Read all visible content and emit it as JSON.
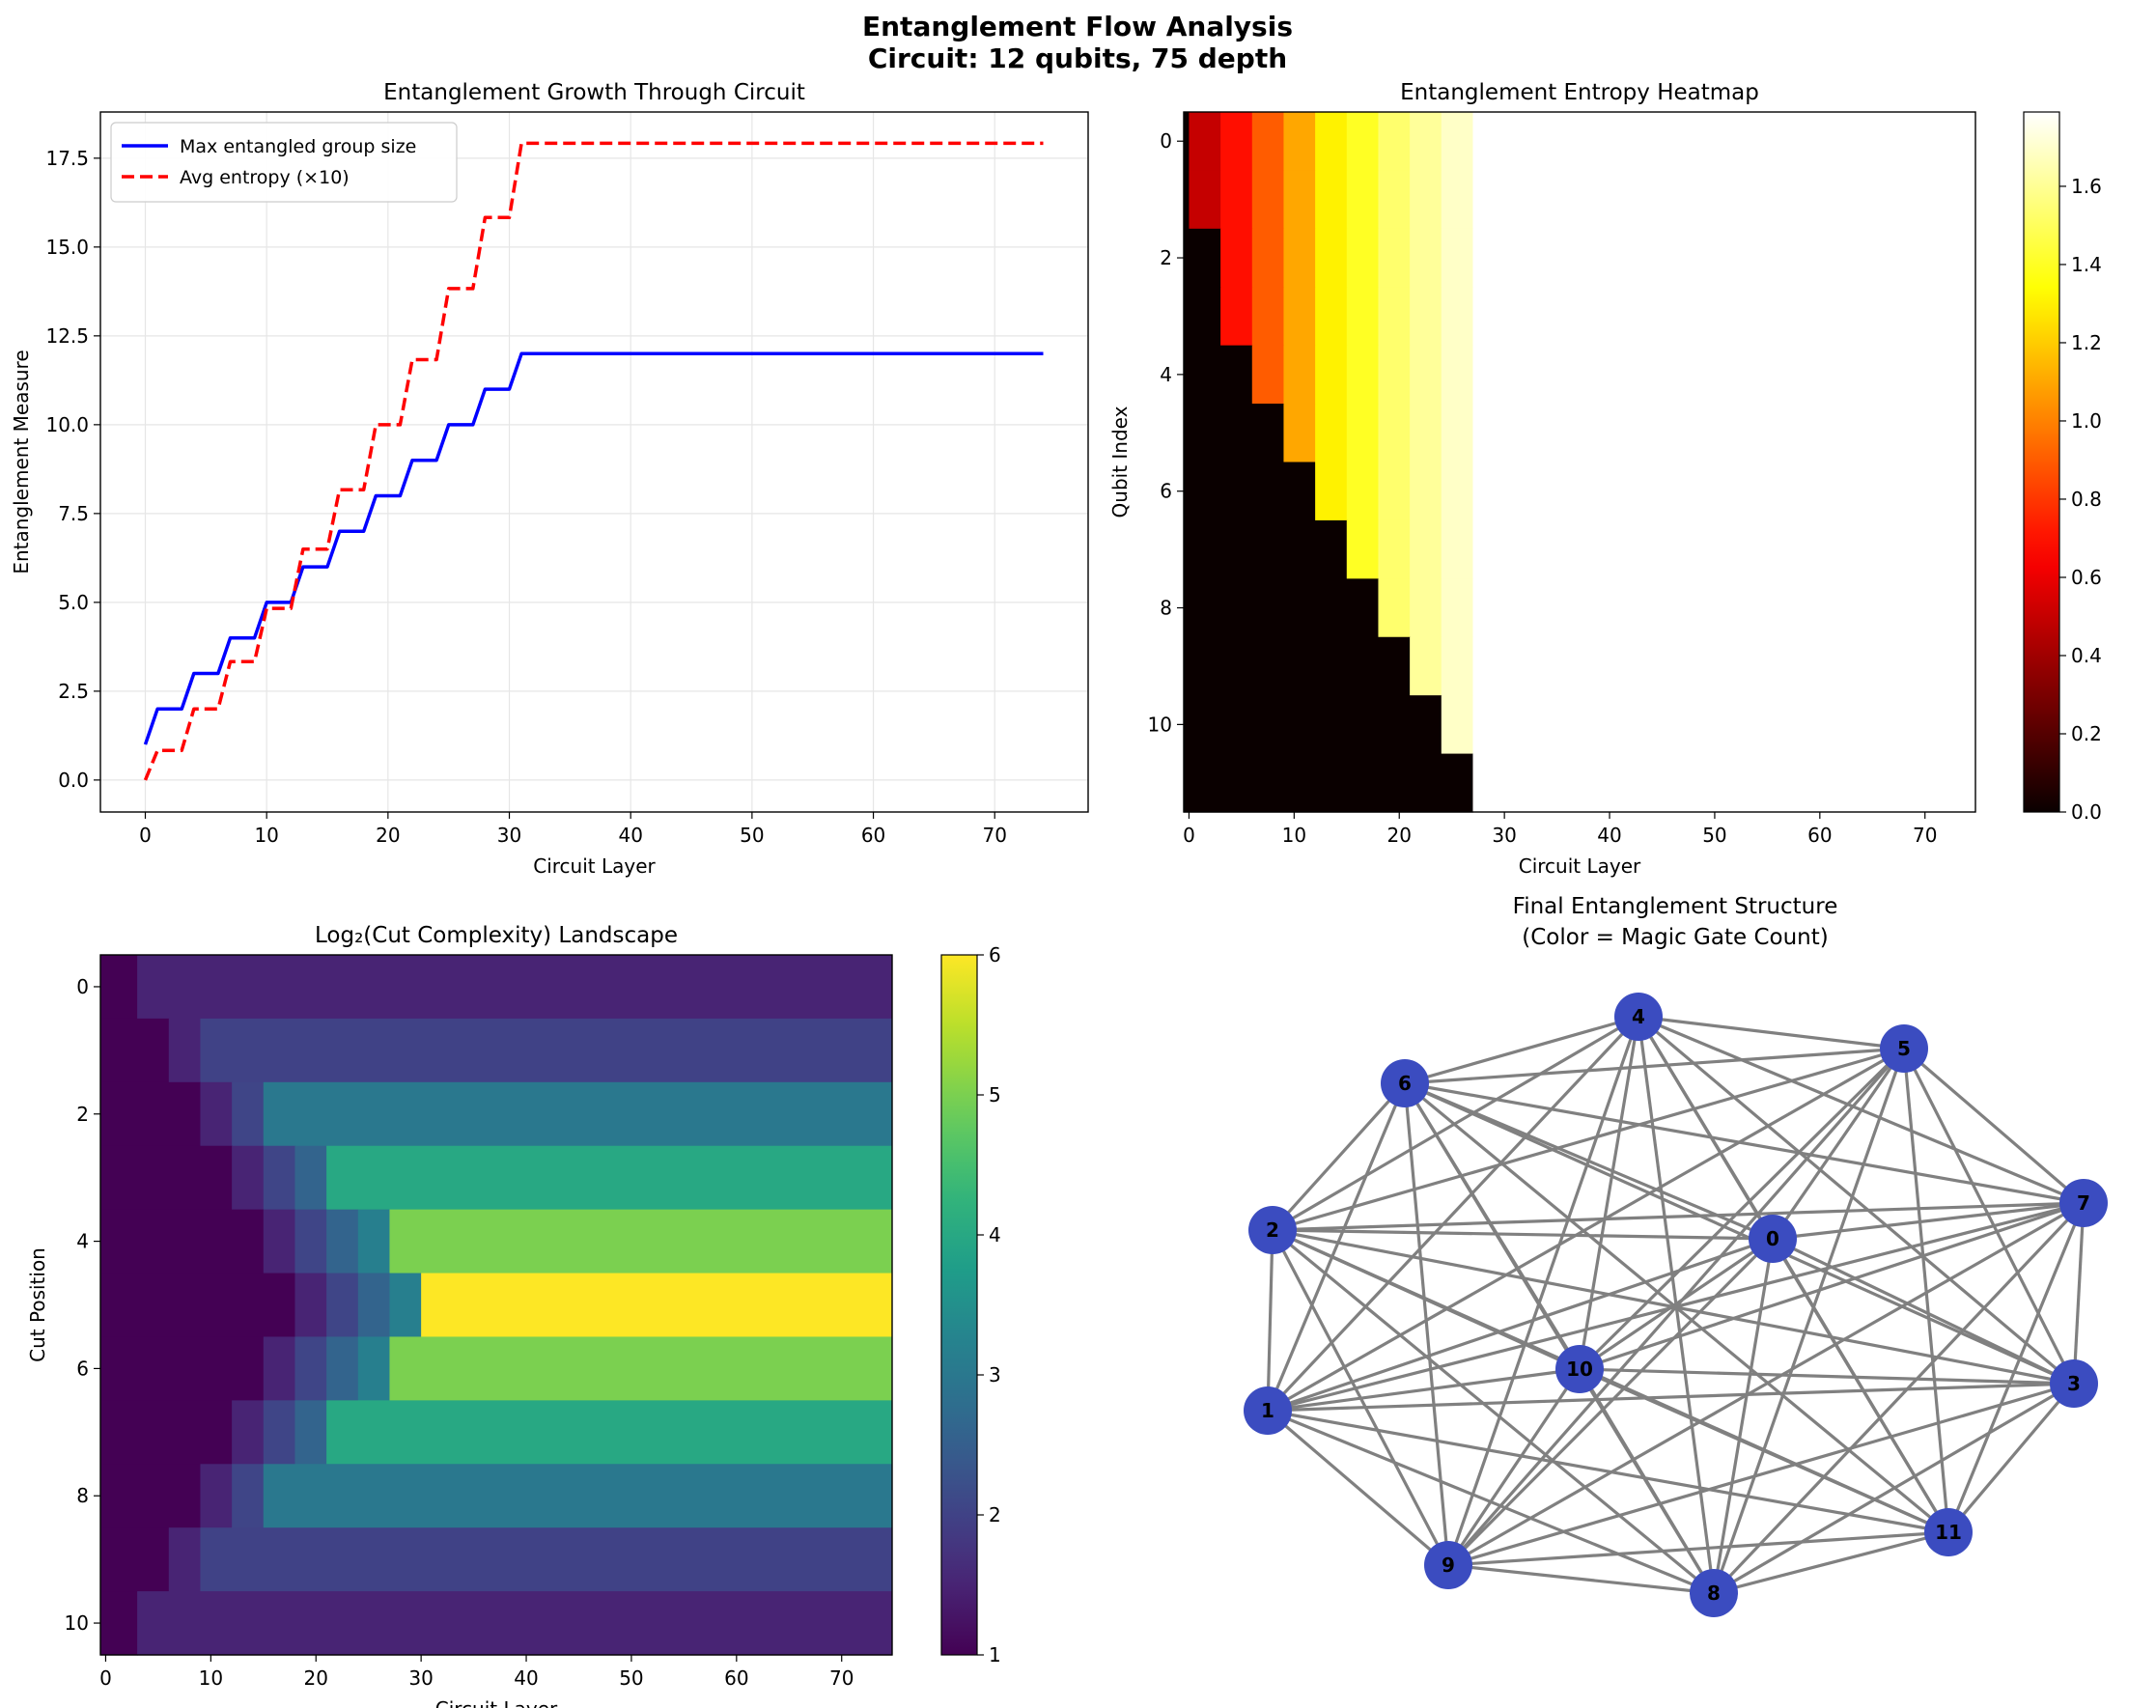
{
  "figure": {
    "title_line1": "Entanglement Flow Analysis",
    "title_line2": "Circuit: 12 qubits, 75 depth"
  },
  "chart_data": [
    {
      "type": "line",
      "title": "Entanglement Growth Through Circuit",
      "xlabel": "Circuit Layer",
      "ylabel": "Entanglement Measure",
      "xlim": [
        -3.7,
        77.7
      ],
      "ylim": [
        -0.9,
        18.8
      ],
      "xticks": [
        0,
        10,
        20,
        30,
        40,
        50,
        60,
        70
      ],
      "yticks": [
        "0.0",
        "2.5",
        "5.0",
        "7.5",
        "10.0",
        "12.5",
        "15.0",
        "17.5"
      ],
      "grid": true,
      "legend_position": "upper-left",
      "series": [
        {
          "name": "Max entangled group size",
          "color": "#0000ff",
          "style": "solid",
          "points": [
            [
              0,
              1
            ],
            [
              1,
              2
            ],
            [
              3,
              2
            ],
            [
              4,
              3
            ],
            [
              6,
              3
            ],
            [
              7,
              4
            ],
            [
              9,
              4
            ],
            [
              10,
              5
            ],
            [
              12,
              5
            ],
            [
              13,
              6
            ],
            [
              15,
              6
            ],
            [
              16,
              7
            ],
            [
              18,
              7
            ],
            [
              19,
              8
            ],
            [
              21,
              8
            ],
            [
              22,
              9
            ],
            [
              24,
              9
            ],
            [
              25,
              10
            ],
            [
              27,
              10
            ],
            [
              28,
              11
            ],
            [
              30,
              11
            ],
            [
              31,
              12
            ],
            [
              74,
              12
            ]
          ]
        },
        {
          "name": "Avg entropy (×10)",
          "color": "#ff0000",
          "style": "dashed",
          "points": [
            [
              0,
              0
            ],
            [
              1,
              0.83
            ],
            [
              3,
              0.83
            ],
            [
              4,
              2.0
            ],
            [
              6,
              2.0
            ],
            [
              7,
              3.33
            ],
            [
              9,
              3.33
            ],
            [
              10,
              4.83
            ],
            [
              12,
              4.83
            ],
            [
              13,
              6.5
            ],
            [
              15,
              6.5
            ],
            [
              16,
              8.17
            ],
            [
              18,
              8.17
            ],
            [
              19,
              10.0
            ],
            [
              21,
              10.0
            ],
            [
              22,
              11.83
            ],
            [
              24,
              11.83
            ],
            [
              25,
              13.83
            ],
            [
              27,
              13.83
            ],
            [
              28,
              15.83
            ],
            [
              30,
              15.83
            ],
            [
              31,
              17.92
            ],
            [
              74,
              17.92
            ]
          ]
        }
      ]
    },
    {
      "type": "heatmap",
      "title": "Entanglement Entropy Heatmap",
      "xlabel": "Circuit Layer",
      "ylabel": "Qubit Index",
      "xticks": [
        0,
        10,
        20,
        30,
        40,
        50,
        60,
        70
      ],
      "yticks": [
        0,
        2,
        4,
        6,
        8,
        10
      ],
      "colormap": "hot",
      "colorbar": {
        "min": 0.0,
        "max": 1.79,
        "ticks": [
          "0.0",
          "0.2",
          "0.4",
          "0.6",
          "0.8",
          "1.0",
          "1.2",
          "1.4",
          "1.6"
        ]
      },
      "rows": 12,
      "columns": 75,
      "entropy_levels": [
        0.5,
        0.69,
        0.9,
        1.1,
        1.3,
        1.4,
        1.53,
        1.61,
        1.69,
        1.79
      ],
      "level_start_layer": [
        1,
        4,
        7,
        10,
        13,
        16,
        19,
        22,
        25,
        28
      ],
      "level_end_layer": [
        3,
        6,
        9,
        12,
        15,
        18,
        21,
        24,
        27,
        30
      ],
      "row_start_layer": [
        1,
        1,
        4,
        4,
        7,
        10,
        13,
        16,
        19,
        22,
        25,
        28
      ],
      "after_layer_30": "white (unfilled)"
    },
    {
      "type": "heatmap",
      "title": "Log₂(Cut Complexity) Landscape",
      "xlabel": "Circuit Layer",
      "ylabel": "Cut Position",
      "xticks": [
        0,
        10,
        20,
        30,
        40,
        50,
        60,
        70
      ],
      "yticks": [
        0,
        2,
        4,
        6,
        8,
        10
      ],
      "colormap": "viridis",
      "colorbar": {
        "min": 1,
        "max": 6,
        "ticks": [
          "1",
          "2",
          "3",
          "4",
          "5",
          "6"
        ]
      },
      "rows": 11,
      "columns": 75,
      "final_values": [
        1.5,
        2.0,
        3.0,
        4.0,
        5.0,
        6.0,
        5.0,
        4.0,
        3.0,
        2.0,
        1.5
      ]
    },
    {
      "type": "graph",
      "title_line1": "Final Entanglement Structure",
      "title_line2": "(Color = Magic Gate Count)",
      "node_color": "#3b4cc0",
      "edge_color": "#808080",
      "nodes": [
        "0",
        "1",
        "2",
        "3",
        "4",
        "5",
        "6",
        "7",
        "8",
        "9",
        "10",
        "11"
      ],
      "edges": "complete graph (every pair of the 12 qubits connected)"
    }
  ]
}
